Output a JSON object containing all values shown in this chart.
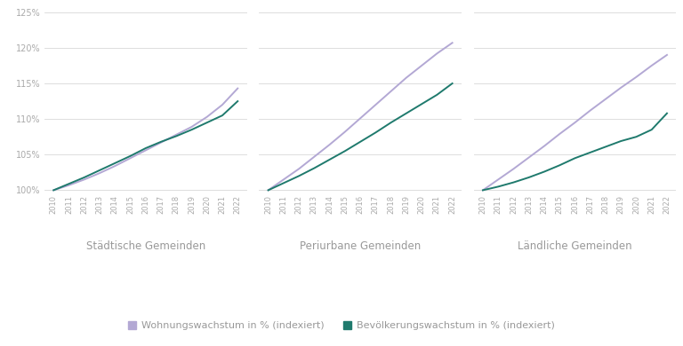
{
  "years": [
    2010,
    2011,
    2012,
    2013,
    2014,
    2015,
    2016,
    2017,
    2018,
    2019,
    2020,
    2021,
    2022
  ],
  "panels": [
    {
      "title": "Städtische Gemeinden",
      "housing": [
        100,
        100.7,
        101.5,
        102.4,
        103.4,
        104.5,
        105.6,
        106.7,
        107.8,
        108.9,
        110.3,
        112.0,
        114.3
      ],
      "population": [
        100,
        100.9,
        101.8,
        102.8,
        103.8,
        104.8,
        105.9,
        106.8,
        107.6,
        108.5,
        109.5,
        110.5,
        112.5
      ]
    },
    {
      "title": "Periurbane Gemeinden",
      "housing": [
        100,
        101.5,
        103.0,
        104.7,
        106.4,
        108.2,
        110.1,
        112.0,
        113.9,
        115.8,
        117.5,
        119.2,
        120.7
      ],
      "population": [
        100,
        101.0,
        102.0,
        103.1,
        104.3,
        105.5,
        106.8,
        108.1,
        109.5,
        110.8,
        112.1,
        113.4,
        115.0
      ]
    },
    {
      "title": "Ländliche Gemeinden",
      "housing": [
        100,
        101.5,
        103.0,
        104.6,
        106.2,
        107.9,
        109.5,
        111.2,
        112.8,
        114.4,
        115.9,
        117.5,
        119.0
      ],
      "population": [
        100,
        100.5,
        101.1,
        101.8,
        102.6,
        103.5,
        104.5,
        105.3,
        106.1,
        106.9,
        107.5,
        108.5,
        110.8
      ]
    }
  ],
  "housing_color": "#b3a8d4",
  "population_color": "#1f7a6d",
  "housing_label": "Wohnungswachstum in % (indexiert)",
  "population_label": "Bevölkerungswachstum in % (indexiert)",
  "ylim": [
    99.5,
    125.5
  ],
  "yticks": [
    100,
    105,
    110,
    115,
    120,
    125
  ],
  "background_color": "#ffffff",
  "grid_color": "#d8d8d8",
  "tick_label_color": "#aaaaaa",
  "title_color": "#999999",
  "line_width": 1.4
}
